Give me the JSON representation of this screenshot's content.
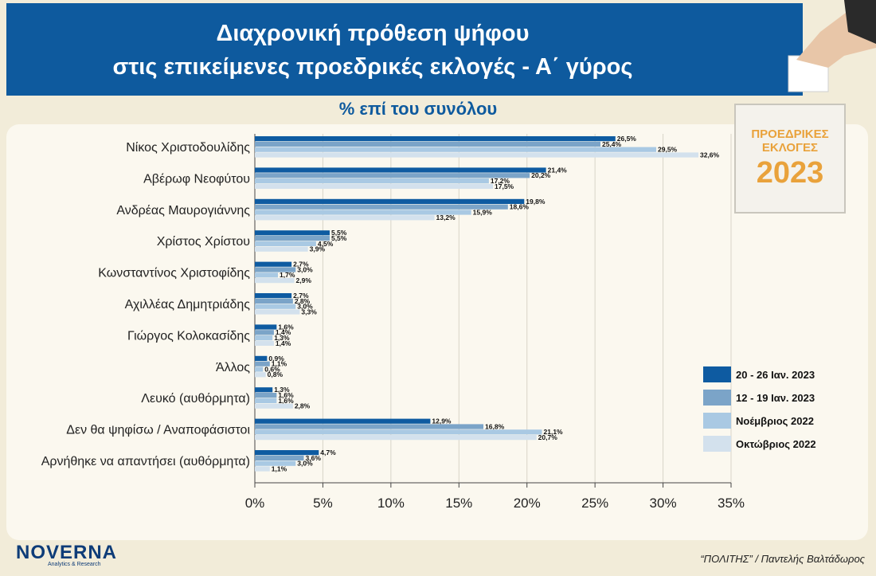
{
  "header": {
    "title_line1": "Διαχρονική πρόθεση ψήφου",
    "title_line2": "στις επικείμενες προεδρικές εκλογές - Α΄ γύρος"
  },
  "subtitle": "% επί του συνόλου",
  "badge": {
    "line1": "ΠΡΟΕΔΡΙΚΕΣ",
    "line2": "ΕΚΛΟΓΕΣ",
    "year": "2023"
  },
  "logo": {
    "name": "NOVERNA",
    "tagline": "Analytics & Research"
  },
  "credit": "“ΠΟΛΙΤΗΣ” / Παντελής Βαλτάδωρος",
  "colors": {
    "series1": "#0e5ba1",
    "series2": "#7ba4c8",
    "series3": "#a9c9e3",
    "series4": "#d3e1ed",
    "header": "#0e5a9e",
    "badge_text": "#e9a23b"
  },
  "chart_data": {
    "type": "bar",
    "orientation": "horizontal",
    "categories": [
      "Νίκος Χριστοδουλίδης",
      "Αβέρωφ Νεοφύτου",
      "Ανδρέας Μαυρογιάννης",
      "Χρίστος Χρίστου",
      "Κωνσταντίνος Χριστοφίδης",
      "Αχιλλέας Δημητριάδης",
      "Γιώργος Κολοκασίδης",
      "Άλλος",
      "Λευκό (αυθόρμητα)",
      "Δεν θα ψηφίσω / Αναποφάσιστοι",
      "Αρνήθηκε να απαντήσει (αυθόρμητα)"
    ],
    "series": [
      {
        "name": "20 - 26 Ιαν. 2023",
        "values": [
          26.5,
          21.4,
          19.8,
          5.5,
          2.7,
          2.7,
          1.6,
          0.9,
          1.3,
          12.9,
          4.7
        ],
        "labels": [
          "26,5%",
          "21,4%",
          "19,8%",
          "5,5%",
          "2,7%",
          "2,7%",
          "1,6%",
          "0,9%",
          "1,3%",
          "12,9%",
          "4,7%"
        ]
      },
      {
        "name": "12 - 19 Ιαν. 2023",
        "values": [
          25.4,
          20.2,
          18.6,
          5.5,
          3.0,
          2.8,
          1.4,
          1.1,
          1.6,
          16.8,
          3.6
        ],
        "labels": [
          "25,4%",
          "20,2%",
          "18,6%",
          "5,5%",
          "3,0%",
          "2,8%",
          "1,4%",
          "1,1%",
          "1,6%",
          "16,8%",
          "3,6%"
        ]
      },
      {
        "name": "Νοέμβριος 2022",
        "values": [
          29.5,
          17.2,
          15.9,
          4.5,
          1.7,
          3.0,
          1.3,
          0.6,
          1.6,
          21.1,
          3.0
        ],
        "labels": [
          "29,5%",
          "17,2%",
          "15,9%",
          "4,5%",
          "1,7%",
          "3,0%",
          "1,3%",
          "0,6%",
          "1,6%",
          "21,1%",
          "3,0%"
        ]
      },
      {
        "name": "Οκτώβριος 2022",
        "values": [
          32.6,
          17.5,
          13.2,
          3.9,
          2.9,
          3.3,
          1.4,
          0.8,
          2.8,
          20.7,
          1.1
        ],
        "labels": [
          "32,6%",
          "17,5%",
          "13,2%",
          "3,9%",
          "2,9%",
          "3,3%",
          "1,4%",
          "0,8%",
          "2,8%",
          "20,7%",
          "1,1%"
        ]
      }
    ],
    "xlim": [
      0,
      35
    ],
    "xticks": [
      "0%",
      "5%",
      "10%",
      "15%",
      "20%",
      "25%",
      "30%",
      "35%"
    ],
    "legend_position": "right"
  }
}
